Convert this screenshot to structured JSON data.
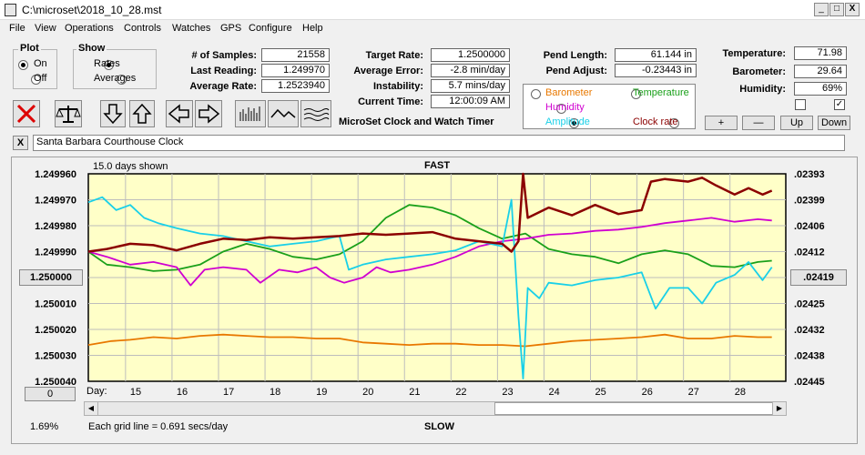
{
  "window": {
    "title": "C:\\microset\\2018_10_28.mst",
    "min": "_",
    "max": "□",
    "close": "X"
  },
  "menu": [
    "File",
    "View",
    "Operations",
    "Controls",
    "Watches",
    "GPS",
    "Configure",
    "Help"
  ],
  "plot_group": {
    "legend": "Plot",
    "on": "On",
    "off": "Off",
    "selected": "On"
  },
  "show_group": {
    "legend": "Show",
    "rates": "Rates",
    "averages": "Averages",
    "selected": "Rates"
  },
  "stats": [
    {
      "label": "# of Samples:",
      "value": "21558"
    },
    {
      "label": "Last Reading:",
      "value": "1.249970"
    },
    {
      "label": "Average Rate:",
      "value": "1.2523940"
    }
  ],
  "rates": [
    {
      "label": "Target Rate:",
      "value": "1.2500000"
    },
    {
      "label": "Average Error:",
      "value": "-2.8 min/day"
    },
    {
      "label": "Instability:",
      "value": "5.7 mins/day"
    },
    {
      "label": "Current Time:",
      "value": "12:00:09 AM"
    }
  ],
  "pend": [
    {
      "label": "Pend Length:",
      "value": "61.144 in"
    },
    {
      "label": "Pend Adjust:",
      "value": "-0.23443 in"
    }
  ],
  "env": [
    {
      "label": "Temperature:",
      "value": "71.98"
    },
    {
      "label": "Barometer:",
      "value": "29.64"
    },
    {
      "label": "Humidity:",
      "value": "69%"
    }
  ],
  "product": "MicroSet Clock and Watch Timer",
  "series_options": [
    {
      "label": "Barometer",
      "color": "#e87800",
      "selected": false
    },
    {
      "label": "Temperature",
      "color": "#1aa01a",
      "selected": false
    },
    {
      "label": "Humidity",
      "color": "#d000d0",
      "selected": false
    },
    {
      "label": "Amplitude",
      "color": "#19d0e8",
      "selected": true
    },
    {
      "label": "Clock rate",
      "color": "#8b0000",
      "selected": false
    }
  ],
  "env_buttons": {
    "plus": "+",
    "minus": "—",
    "up": "Up",
    "down": "Down"
  },
  "checkbox_left": false,
  "checkbox_right": true,
  "clock_name": "Santa Barbara Courthouse Clock",
  "clear_label": "X",
  "toolbar_icons": [
    "stop-icon",
    "balance-icon",
    "arrow-down-icon",
    "arrow-up-icon",
    "arrow-left-icon",
    "arrow-right-icon",
    "bars-icon",
    "wave-icon",
    "ripple-icon"
  ],
  "chart_top": {
    "days_shown": "15.0 days shown",
    "fast": "FAST",
    "slow": "SLOW",
    "grid_note": "Each grid line = 0.691 secs/day",
    "day_label": "Day:"
  },
  "left_center_button": "1.250000",
  "right_center_button": ".02419",
  "zero_button": "0",
  "percent": "1.69%",
  "chart_data": {
    "type": "line",
    "left_ticks": [
      "1.249960",
      "1.249970",
      "1.249980",
      "1.249990",
      "",
      "1.250010",
      "1.250020",
      "1.250030",
      "1.250040"
    ],
    "right_ticks": [
      ".02393",
      ".02399",
      ".02406",
      ".02412",
      "",
      ".02425",
      ".02432",
      ".02438",
      ".02445"
    ],
    "day_ticks": [
      "15",
      "16",
      "17",
      "18",
      "19",
      "20",
      "21",
      "22",
      "23",
      "24",
      "25",
      "26",
      "27",
      "28"
    ],
    "xlim": [
      14.1,
      29.1
    ],
    "ylim": [
      0,
      8
    ],
    "series": [
      {
        "color": "#e87800",
        "points": [
          [
            14.1,
            6.6
          ],
          [
            14.6,
            6.45
          ],
          [
            15,
            6.4
          ],
          [
            15.5,
            6.3
          ],
          [
            16,
            6.35
          ],
          [
            16.5,
            6.25
          ],
          [
            17,
            6.2
          ],
          [
            17.5,
            6.25
          ],
          [
            18,
            6.3
          ],
          [
            18.5,
            6.3
          ],
          [
            19,
            6.35
          ],
          [
            19.5,
            6.35
          ],
          [
            20,
            6.5
          ],
          [
            20.5,
            6.55
          ],
          [
            21,
            6.6
          ],
          [
            21.5,
            6.55
          ],
          [
            22,
            6.55
          ],
          [
            22.5,
            6.6
          ],
          [
            23,
            6.6
          ],
          [
            23.5,
            6.65
          ],
          [
            24,
            6.55
          ],
          [
            24.5,
            6.45
          ],
          [
            25,
            6.4
          ],
          [
            25.5,
            6.35
          ],
          [
            26,
            6.3
          ],
          [
            26.5,
            6.2
          ],
          [
            27,
            6.35
          ],
          [
            27.5,
            6.35
          ],
          [
            28,
            6.25
          ],
          [
            28.5,
            6.3
          ],
          [
            28.8,
            6.3
          ]
        ]
      },
      {
        "color": "#1aa01a",
        "points": [
          [
            14.1,
            3.0
          ],
          [
            14.5,
            3.5
          ],
          [
            15,
            3.6
          ],
          [
            15.5,
            3.75
          ],
          [
            16,
            3.7
          ],
          [
            16.5,
            3.5
          ],
          [
            17,
            3.0
          ],
          [
            17.5,
            2.7
          ],
          [
            18,
            2.9
          ],
          [
            18.5,
            3.2
          ],
          [
            19,
            3.3
          ],
          [
            19.5,
            3.1
          ],
          [
            20,
            2.6
          ],
          [
            20.5,
            1.7
          ],
          [
            21,
            1.2
          ],
          [
            21.5,
            1.3
          ],
          [
            22,
            1.6
          ],
          [
            22.5,
            2.1
          ],
          [
            23,
            2.5
          ],
          [
            23.5,
            2.3
          ],
          [
            24,
            2.9
          ],
          [
            24.5,
            3.1
          ],
          [
            25,
            3.2
          ],
          [
            25.5,
            3.45
          ],
          [
            26,
            3.1
          ],
          [
            26.5,
            2.95
          ],
          [
            27,
            3.1
          ],
          [
            27.5,
            3.55
          ],
          [
            28,
            3.6
          ],
          [
            28.5,
            3.4
          ],
          [
            28.8,
            3.35
          ]
        ]
      },
      {
        "color": "#d000d0",
        "points": [
          [
            14.1,
            3.0
          ],
          [
            14.5,
            3.2
          ],
          [
            15,
            3.5
          ],
          [
            15.5,
            3.4
          ],
          [
            16,
            3.6
          ],
          [
            16.3,
            4.3
          ],
          [
            16.6,
            3.7
          ],
          [
            17,
            3.6
          ],
          [
            17.5,
            3.7
          ],
          [
            17.8,
            4.2
          ],
          [
            18.2,
            3.7
          ],
          [
            18.6,
            3.8
          ],
          [
            19,
            3.6
          ],
          [
            19.3,
            4.0
          ],
          [
            19.6,
            4.2
          ],
          [
            20,
            4.0
          ],
          [
            20.3,
            3.6
          ],
          [
            20.6,
            3.8
          ],
          [
            21,
            3.7
          ],
          [
            21.5,
            3.5
          ],
          [
            22,
            3.2
          ],
          [
            22.5,
            2.8
          ],
          [
            23,
            2.6
          ],
          [
            23.5,
            2.5
          ],
          [
            24,
            2.35
          ],
          [
            24.5,
            2.3
          ],
          [
            25,
            2.2
          ],
          [
            25.5,
            2.15
          ],
          [
            26,
            2.05
          ],
          [
            26.5,
            1.9
          ],
          [
            27,
            1.8
          ],
          [
            27.5,
            1.7
          ],
          [
            28,
            1.85
          ],
          [
            28.5,
            1.75
          ],
          [
            28.8,
            1.8
          ]
        ]
      },
      {
        "color": "#19d0e8",
        "points": [
          [
            14.1,
            1.1
          ],
          [
            14.4,
            0.9
          ],
          [
            14.7,
            1.4
          ],
          [
            15,
            1.2
          ],
          [
            15.3,
            1.7
          ],
          [
            15.6,
            1.9
          ],
          [
            16,
            2.1
          ],
          [
            16.5,
            2.3
          ],
          [
            17,
            2.4
          ],
          [
            17.5,
            2.6
          ],
          [
            18,
            2.8
          ],
          [
            18.5,
            2.7
          ],
          [
            19,
            2.6
          ],
          [
            19.5,
            2.4
          ],
          [
            19.7,
            3.7
          ],
          [
            20,
            3.5
          ],
          [
            20.5,
            3.3
          ],
          [
            21,
            3.2
          ],
          [
            21.5,
            3.1
          ],
          [
            22,
            2.95
          ],
          [
            22.5,
            2.6
          ],
          [
            23,
            2.8
          ],
          [
            23.2,
            1.0
          ],
          [
            23.35,
            5.5
          ],
          [
            23.45,
            7.9
          ],
          [
            23.55,
            4.4
          ],
          [
            23.8,
            4.8
          ],
          [
            24,
            4.2
          ],
          [
            24.5,
            4.3
          ],
          [
            25,
            4.1
          ],
          [
            25.5,
            4.0
          ],
          [
            26,
            3.8
          ],
          [
            26.3,
            5.2
          ],
          [
            26.6,
            4.4
          ],
          [
            27,
            4.4
          ],
          [
            27.3,
            5.0
          ],
          [
            27.6,
            4.2
          ],
          [
            28,
            3.9
          ],
          [
            28.3,
            3.4
          ],
          [
            28.6,
            4.1
          ],
          [
            28.8,
            3.6
          ]
        ]
      },
      {
        "color": "#8b0000",
        "points": [
          [
            14.1,
            3.0
          ],
          [
            14.5,
            2.9
          ],
          [
            15,
            2.7
          ],
          [
            15.5,
            2.75
          ],
          [
            16,
            2.95
          ],
          [
            16.5,
            2.7
          ],
          [
            17,
            2.5
          ],
          [
            17.5,
            2.55
          ],
          [
            18,
            2.45
          ],
          [
            18.5,
            2.5
          ],
          [
            19,
            2.45
          ],
          [
            19.5,
            2.4
          ],
          [
            20,
            2.3
          ],
          [
            20.5,
            2.35
          ],
          [
            21,
            2.3
          ],
          [
            21.5,
            2.25
          ],
          [
            22,
            2.5
          ],
          [
            22.5,
            2.6
          ],
          [
            23,
            2.7
          ],
          [
            23.2,
            3.0
          ],
          [
            23.35,
            2.6
          ],
          [
            23.45,
            0.0
          ],
          [
            23.55,
            1.7
          ],
          [
            24,
            1.3
          ],
          [
            24.5,
            1.6
          ],
          [
            25,
            1.2
          ],
          [
            25.5,
            1.55
          ],
          [
            26,
            1.4
          ],
          [
            26.2,
            0.3
          ],
          [
            26.5,
            0.2
          ],
          [
            27,
            0.3
          ],
          [
            27.3,
            0.15
          ],
          [
            27.6,
            0.45
          ],
          [
            28,
            0.8
          ],
          [
            28.3,
            0.55
          ],
          [
            28.6,
            0.8
          ],
          [
            28.8,
            0.65
          ]
        ]
      }
    ]
  }
}
